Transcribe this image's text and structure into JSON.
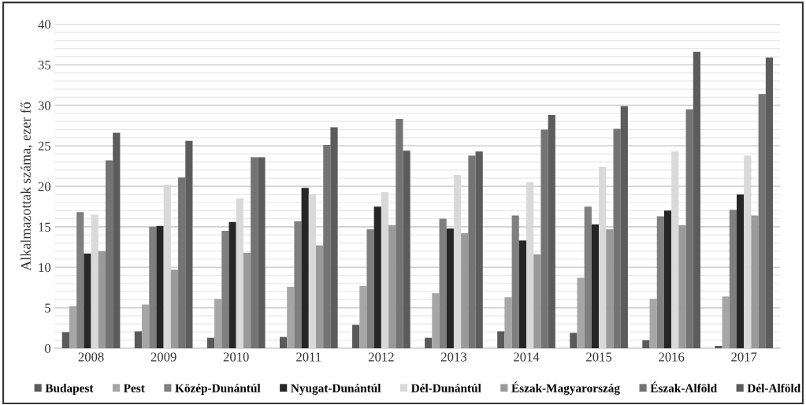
{
  "chart_data": {
    "type": "bar",
    "ylabel": "Alkalmazottak száma, ezer fő",
    "categories": [
      "2008",
      "2009",
      "2010",
      "2011",
      "2012",
      "2013",
      "2014",
      "2015",
      "2016",
      "2017"
    ],
    "series": [
      {
        "name": "Budapest",
        "color": "#5a5a5a",
        "values": [
          2.0,
          2.1,
          1.3,
          1.4,
          2.9,
          1.3,
          2.1,
          1.9,
          1.0,
          0.3
        ]
      },
      {
        "name": "Pest",
        "color": "#a6a6a6",
        "values": [
          5.2,
          5.4,
          6.1,
          7.6,
          7.7,
          6.8,
          6.3,
          8.7,
          6.1,
          6.4
        ]
      },
      {
        "name": "Közép-Dunántúl",
        "color": "#7f7f7f",
        "values": [
          16.8,
          15.0,
          14.5,
          15.7,
          14.7,
          16.0,
          16.4,
          17.5,
          16.3,
          17.1
        ]
      },
      {
        "name": "Nyugat-Dunántúl",
        "color": "#262626",
        "values": [
          11.7,
          15.1,
          15.6,
          19.8,
          17.5,
          14.8,
          13.3,
          15.3,
          17.0,
          19.0
        ]
      },
      {
        "name": "Dél-Dunántúl",
        "color": "#d9d9d9",
        "values": [
          16.5,
          20.2,
          18.5,
          19.0,
          19.3,
          21.4,
          20.5,
          22.4,
          24.3,
          23.8
        ]
      },
      {
        "name": "Észak-Magyarország",
        "color": "#9a9a9a",
        "values": [
          12.0,
          9.7,
          11.8,
          12.7,
          15.2,
          14.2,
          11.6,
          14.7,
          15.2,
          16.4
        ]
      },
      {
        "name": "Észak-Alföld",
        "color": "#747474",
        "values": [
          23.2,
          21.1,
          23.6,
          25.1,
          28.3,
          23.8,
          27.0,
          27.1,
          29.5,
          31.4
        ]
      },
      {
        "name": "Dél-Alföld",
        "color": "#5c5c5c",
        "values": [
          26.6,
          25.6,
          23.6,
          27.3,
          24.4,
          24.3,
          28.8,
          29.9,
          36.6,
          35.9
        ]
      }
    ],
    "ylim": [
      0,
      40
    ],
    "yticks": [
      0,
      {
        "value": 1,
        "label": null
      },
      {
        "value": 2,
        "label": null
      },
      {
        "value": 3,
        "label": null
      },
      {
        "value": 4,
        "label": null
      },
      5,
      {
        "value": 6,
        "label": null
      },
      {
        "value": 7,
        "label": null
      },
      {
        "value": 8,
        "label": null
      },
      {
        "value": 9,
        "label": null
      },
      10,
      {
        "value": 11,
        "label": null
      },
      {
        "value": 12,
        "label": null
      },
      {
        "value": 13,
        "label": null
      },
      {
        "value": 14,
        "label": null
      },
      15,
      {
        "value": 16,
        "label": null
      },
      {
        "value": 17,
        "label": null
      },
      {
        "value": 18,
        "label": null
      },
      {
        "value": 19,
        "label": null
      },
      20,
      {
        "value": 21,
        "label": null
      },
      {
        "value": 22,
        "label": null
      },
      {
        "value": 23,
        "label": null
      },
      {
        "value": 24,
        "label": null
      },
      25,
      {
        "value": 26,
        "label": null
      },
      {
        "value": 27,
        "label": null
      },
      {
        "value": 28,
        "label": null
      },
      {
        "value": 29,
        "label": null
      },
      30,
      {
        "value": 31,
        "label": null
      },
      {
        "value": 32,
        "label": null
      },
      {
        "value": 33,
        "label": null
      },
      {
        "value": 34,
        "label": null
      },
      35,
      {
        "value": 36,
        "label": null
      },
      {
        "value": 37,
        "label": null
      },
      {
        "value": 38,
        "label": null
      },
      {
        "value": 39,
        "label": null
      },
      40
    ],
    "grid": "y",
    "legend": "bottom"
  }
}
